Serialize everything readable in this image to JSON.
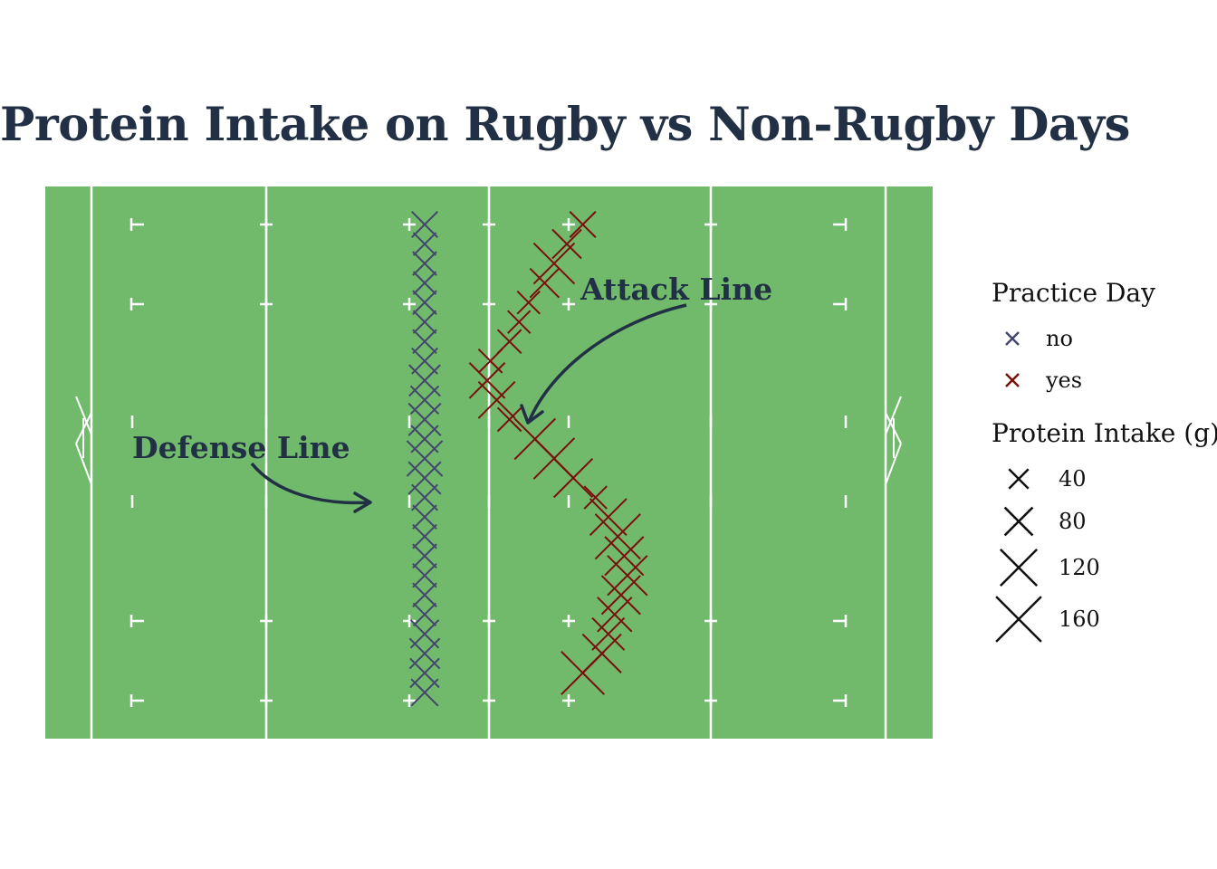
{
  "chart_data": {
    "type": "scatter",
    "title": "Protein Intake on Rugby vs Non-Rugby Days",
    "xlabel": "",
    "ylabel": "",
    "background": "rugby pitch",
    "colors": {
      "pitch": "#71ba6c",
      "pitch_lines": "#ffffff",
      "no": "#43466d",
      "yes": "#7a0f0c",
      "ink": "#223045"
    },
    "annotations": [
      {
        "label": "Defense Line",
        "points_to": "no"
      },
      {
        "label": "Attack Line",
        "points_to": "yes"
      }
    ],
    "legend": {
      "placement": "right",
      "color_title": "Practice Day",
      "color_entries": [
        "no",
        "yes"
      ],
      "size_title": "Protein Intake (g)",
      "size_entries": [
        40,
        80,
        120,
        160
      ]
    },
    "series": [
      {
        "name": "no",
        "points": [
          {
            "day": 1,
            "lane": 0.0,
            "protein": 70
          },
          {
            "day": 2,
            "lane": 0.0,
            "protein": 55
          },
          {
            "day": 3,
            "lane": 0.0,
            "protein": 60
          },
          {
            "day": 4,
            "lane": 0.0,
            "protein": 55
          },
          {
            "day": 5,
            "lane": 0.0,
            "protein": 60
          },
          {
            "day": 6,
            "lane": 0.0,
            "protein": 55
          },
          {
            "day": 7,
            "lane": 0.0,
            "protein": 60
          },
          {
            "day": 8,
            "lane": 0.0,
            "protein": 70
          },
          {
            "day": 9,
            "lane": 0.0,
            "protein": 95
          },
          {
            "day": 10,
            "lane": 0.0,
            "protein": 80
          },
          {
            "day": 11,
            "lane": 0.0,
            "protein": 100
          },
          {
            "day": 12,
            "lane": 0.0,
            "protein": 75
          },
          {
            "day": 13,
            "lane": 0.0,
            "protein": 115
          },
          {
            "day": 14,
            "lane": 0.0,
            "protein": 100
          },
          {
            "day": 15,
            "lane": 0.0,
            "protein": 70
          },
          {
            "day": 16,
            "lane": 0.0,
            "protein": 60
          },
          {
            "day": 17,
            "lane": 0.0,
            "protein": 60
          },
          {
            "day": 18,
            "lane": 0.0,
            "protein": 60
          },
          {
            "day": 19,
            "lane": 0.0,
            "protein": 60
          },
          {
            "day": 20,
            "lane": 0.0,
            "protein": 60
          },
          {
            "day": 21,
            "lane": 0.0,
            "protein": 55
          },
          {
            "day": 22,
            "lane": 0.0,
            "protein": 80
          },
          {
            "day": 23,
            "lane": 0.0,
            "protein": 90
          },
          {
            "day": 24,
            "lane": 0.0,
            "protein": 85
          },
          {
            "day": 25,
            "lane": 0.0,
            "protein": 75
          }
        ]
      },
      {
        "name": "yes",
        "points": [
          {
            "day": 1,
            "lane": 6.0,
            "protein": 70
          },
          {
            "day": 2,
            "lane": 5.0,
            "protein": 85
          },
          {
            "day": 3,
            "lane": 4.2,
            "protein": 140
          },
          {
            "day": 4,
            "lane": 3.6,
            "protein": 85
          },
          {
            "day": 5,
            "lane": 2.6,
            "protein": 55
          },
          {
            "day": 6,
            "lane": 2.0,
            "protein": 55
          },
          {
            "day": 7,
            "lane": 1.4,
            "protein": 60
          },
          {
            "day": 8,
            "lane": 0.2,
            "protein": 60
          },
          {
            "day": 9,
            "lane": 0.0,
            "protein": 115
          },
          {
            "day": 10,
            "lane": 0.6,
            "protein": 120
          },
          {
            "day": 11,
            "lane": 1.4,
            "protein": 60
          },
          {
            "day": 12,
            "lane": 3.0,
            "protein": 140
          },
          {
            "day": 13,
            "lane": 4.2,
            "protein": 140
          },
          {
            "day": 14,
            "lane": 5.4,
            "protein": 130
          },
          {
            "day": 15,
            "lane": 6.8,
            "protein": 55
          },
          {
            "day": 16,
            "lane": 7.6,
            "protein": 120
          },
          {
            "day": 17,
            "lane": 8.2,
            "protein": 160
          },
          {
            "day": 18,
            "lane": 8.6,
            "protein": 130
          },
          {
            "day": 19,
            "lane": 8.8,
            "protein": 135
          },
          {
            "day": 20,
            "lane": 8.4,
            "protein": 130
          },
          {
            "day": 21,
            "lane": 8.0,
            "protein": 110
          },
          {
            "day": 22,
            "lane": 7.6,
            "protein": 100
          },
          {
            "day": 23,
            "lane": 7.2,
            "protein": 130
          },
          {
            "day": 24,
            "lane": 6.0,
            "protein": 150
          }
        ]
      }
    ]
  }
}
